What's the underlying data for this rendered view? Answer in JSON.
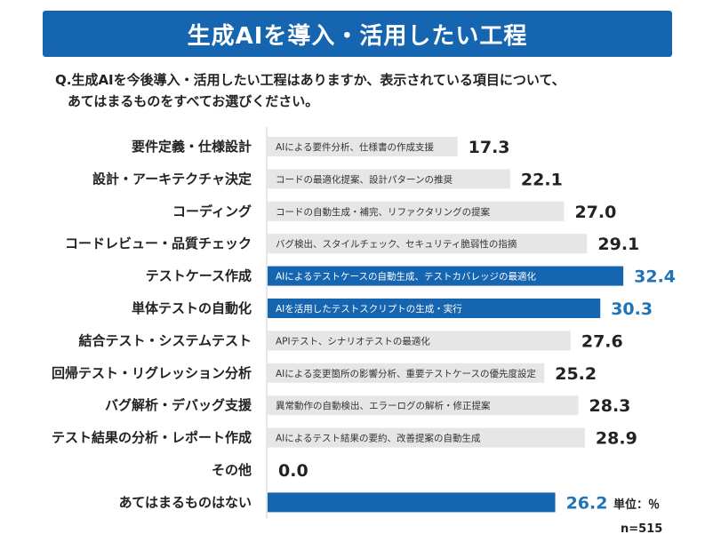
{
  "header": {
    "title": "生成AIを導入・活用したい工程",
    "question_line1": "Q.生成AIを今後導入・活用したい工程はありますか、表示されている項目について、",
    "question_line2": "あてはまるものをすべてお選びください。"
  },
  "footer": {
    "unit": "単位：％",
    "n": "n=515"
  },
  "colors": {
    "header_bg": "#1565b0",
    "bar_default": "#e6e6e6",
    "bar_highlight": "#1565b0",
    "value_highlight": "#1f73b7"
  },
  "chart_data": {
    "type": "bar",
    "orientation": "horizontal",
    "unit": "%",
    "xlim": [
      0,
      45
    ],
    "categories": [
      "要件定義・仕様設計",
      "設計・アーキテクチャ決定",
      "コーディング",
      "コードレビュー・品質チェック",
      "テストケース作成",
      "単体テストの自動化",
      "結合テスト・システムテスト",
      "回帰テスト・リグレッション分析",
      "バグ解析・デバッグ支援",
      "テスト結果の分析・レポート作成",
      "その他",
      "あてはまるものはない"
    ],
    "values": [
      17.3,
      22.1,
      27.0,
      29.1,
      32.4,
      30.3,
      27.6,
      25.2,
      28.3,
      28.9,
      0.0,
      26.2
    ],
    "value_labels": [
      "17.3",
      "22.1",
      "27.0",
      "29.1",
      "32.4",
      "30.3",
      "27.6",
      "25.2",
      "28.3",
      "28.9",
      "0.0",
      "26.2"
    ],
    "bar_notes": [
      "AIによる要件分析、仕様書の作成支援",
      "コードの最適化提案、設計パターンの推奨",
      "コードの自動生成・補完、リファクタリングの提案",
      "バグ検出、スタイルチェック、セキュリティ脆弱性の指摘",
      "AIによるテストケースの自動生成、テストカバレッジの最適化",
      "AIを活用したテストスクリプトの生成・実行",
      "APIテスト、シナリオテストの最適化",
      "AIによる変更箇所の影響分析、重要テストケースの優先度設定",
      "異常動作の自動検出、エラーログの解析・修正提案",
      "AIによるテスト結果の要約、改善提案の自動生成",
      "",
      ""
    ],
    "highlighted": [
      false,
      false,
      false,
      false,
      true,
      true,
      false,
      false,
      false,
      false,
      false,
      true
    ]
  }
}
